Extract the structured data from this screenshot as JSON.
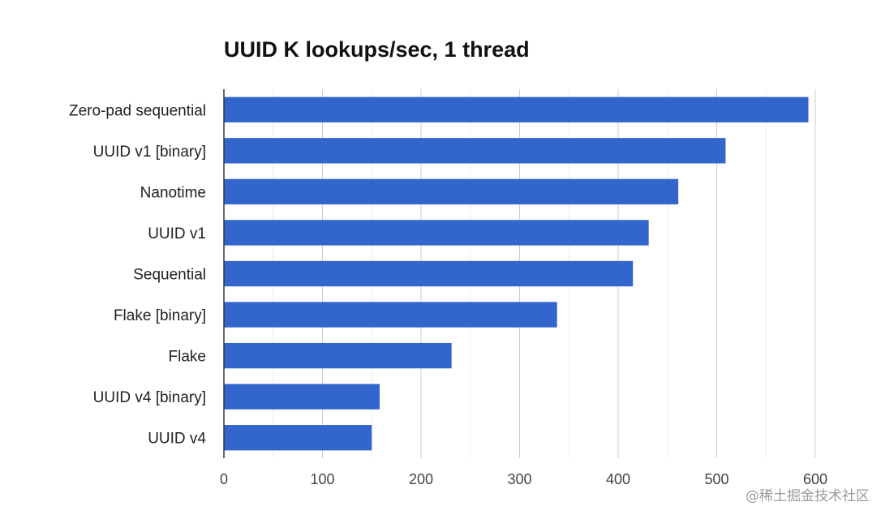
{
  "chart_data": {
    "type": "bar",
    "orientation": "horizontal",
    "title": "UUID K lookups/sec, 1 thread",
    "xlabel": "",
    "ylabel": "",
    "categories": [
      "Zero-pad sequential",
      "UUID v1 [binary]",
      "Nanotime",
      "UUID v1",
      "Sequential",
      "Flake [binary]",
      "Flake",
      "UUID v4 [binary]",
      "UUID v4"
    ],
    "values": [
      593,
      509,
      461,
      431,
      415,
      338,
      231,
      158,
      150
    ],
    "xlim": [
      0,
      600
    ],
    "xticks": [
      0,
      100,
      200,
      300,
      400,
      500,
      600
    ],
    "grid": true,
    "bar_color": "#3366cc"
  },
  "watermark": "@稀土掘金技术社区"
}
